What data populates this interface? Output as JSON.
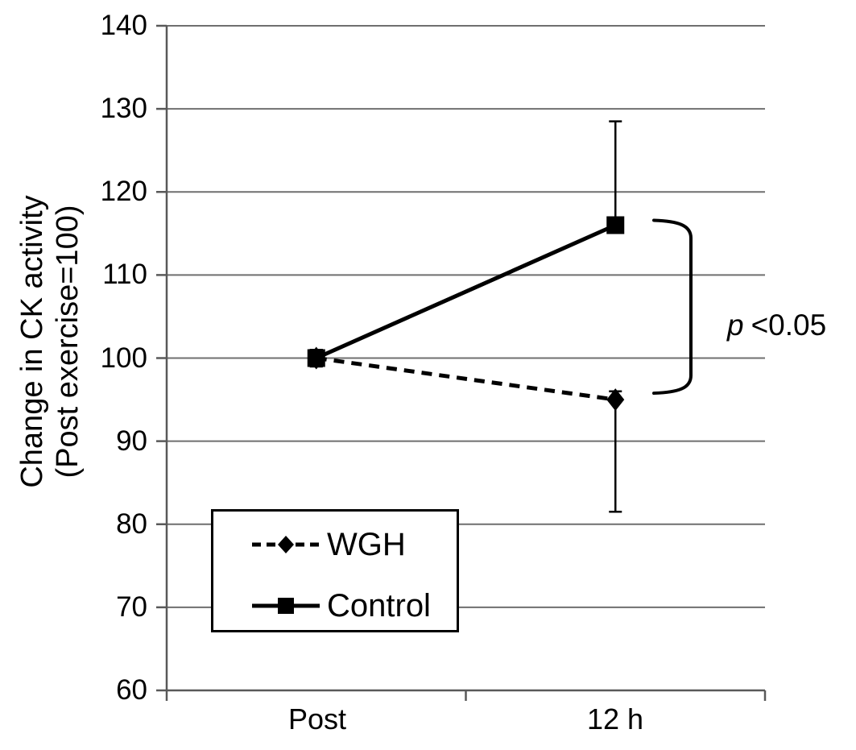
{
  "figure": {
    "background": "#ffffff"
  },
  "colors": {
    "series": "#000000",
    "gridline": "#6f6f6f",
    "axis": "#595959",
    "text": "#000000",
    "background": "#ffffff"
  },
  "chart_data": {
    "type": "line",
    "title": "",
    "ylabel_line1": "Change in CK activity",
    "ylabel_line2": "(Post exercise=100)",
    "xlabel": "",
    "categories": [
      "Post",
      "12 h"
    ],
    "ylim": [
      60,
      140
    ],
    "yticks": [
      60,
      70,
      80,
      90,
      100,
      110,
      120,
      130,
      140
    ],
    "grid": "horizontal gridlines on",
    "legend_position": "inside bottom-left box",
    "series": [
      {
        "name": "WGH",
        "line_style": "dashed",
        "marker": "diamond",
        "color": "#000000",
        "values": [
          100,
          95
        ],
        "error_plus": [
          1,
          1
        ],
        "error_minus": [
          1,
          13.5
        ]
      },
      {
        "name": "Control",
        "line_style": "solid",
        "marker": "square",
        "color": "#000000",
        "values": [
          100,
          116
        ],
        "error_plus": [
          1,
          12.5
        ],
        "error_minus": [
          1,
          0
        ]
      }
    ],
    "annotation": {
      "symbol": "p",
      "text": "<0.05",
      "meaning": "significant difference between Control and WGH at 12 h"
    }
  }
}
